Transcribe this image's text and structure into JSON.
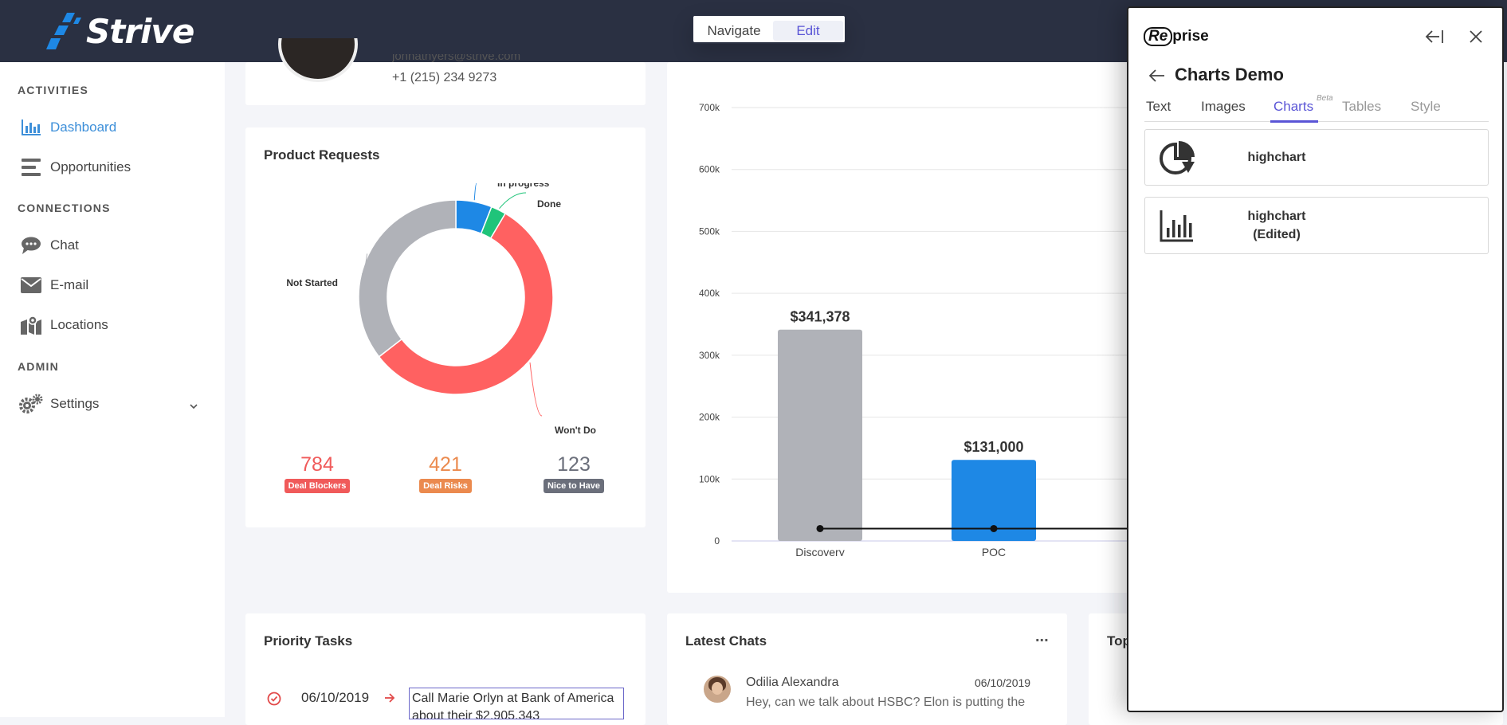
{
  "app": {
    "name": "Strive"
  },
  "mode_toggle": {
    "navigate": "Navigate",
    "edit": "Edit"
  },
  "sidebar": {
    "sections": [
      "ACTIVITIES",
      "CONNECTIONS",
      "ADMIN"
    ],
    "items": [
      {
        "label": "Dashboard",
        "icon": "bar-chart-icon"
      },
      {
        "label": "Opportunities",
        "icon": "list-icon"
      },
      {
        "label": "Chat",
        "icon": "chat-icon"
      },
      {
        "label": "E-mail",
        "icon": "envelope-icon"
      },
      {
        "label": "Locations",
        "icon": "map-icon"
      },
      {
        "label": "Settings",
        "icon": "gear-icon"
      }
    ],
    "accent": "#3d8fd9"
  },
  "profile": {
    "email": "johnathyers@strive.com",
    "phone": "+1 (215) 234 9273"
  },
  "product_requests": {
    "title": "Product Requests",
    "stats": [
      {
        "value": "784",
        "label": "Deal Blockers",
        "color": "#f05a5a"
      },
      {
        "value": "421",
        "label": "Deal Risks",
        "color": "#eb8a4e"
      },
      {
        "value": "123",
        "label": "Nice to Have",
        "color": "#6b6f7b"
      }
    ]
  },
  "chart_data": [
    {
      "type": "pie",
      "labels": [
        "In progress",
        "Done",
        "Won't Do",
        "Not Started"
      ],
      "values": [
        6,
        2.5,
        56,
        35.5
      ],
      "colors": [
        "#1e88e5",
        "#20c47a",
        "#ff6161",
        "#b0b2b8"
      ]
    },
    {
      "type": "bar",
      "categories": [
        "Discovery",
        "POC"
      ],
      "values": [
        341378,
        131000
      ],
      "data_labels": [
        "$341,378",
        "$131,000"
      ],
      "y_ticks": [
        "0",
        "100k",
        "200k",
        "300k",
        "400k",
        "500k",
        "600k",
        "700k"
      ],
      "ylim": [
        0,
        700000
      ],
      "line_values": [
        20000,
        20000
      ],
      "colors": [
        "#b0b2b8",
        "#1e88e5"
      ]
    }
  ],
  "priority_tasks": {
    "title": "Priority Tasks",
    "date": "06/10/2019",
    "task": "Call Marie Orlyn at Bank of America about their $2,905,343"
  },
  "latest_chats": {
    "title": "Latest Chats",
    "more": "...",
    "name": "Odilia Alexandra",
    "date": "06/10/2019",
    "message": "Hey, can we talk about HSBC? Elon is putting the"
  },
  "third_card": {
    "title": "Top"
  },
  "reprise": {
    "brand_box": "Re",
    "brand_rest": "prise",
    "title": "Charts Demo",
    "tabs": [
      "Text",
      "Images",
      "Charts",
      "Tables",
      "Style"
    ],
    "beta": "Beta",
    "charts": [
      {
        "line1": "highchart",
        "line2": ""
      },
      {
        "line1": "highchart",
        "line2": "(Edited)"
      }
    ],
    "active_color": "#5a55d6"
  }
}
